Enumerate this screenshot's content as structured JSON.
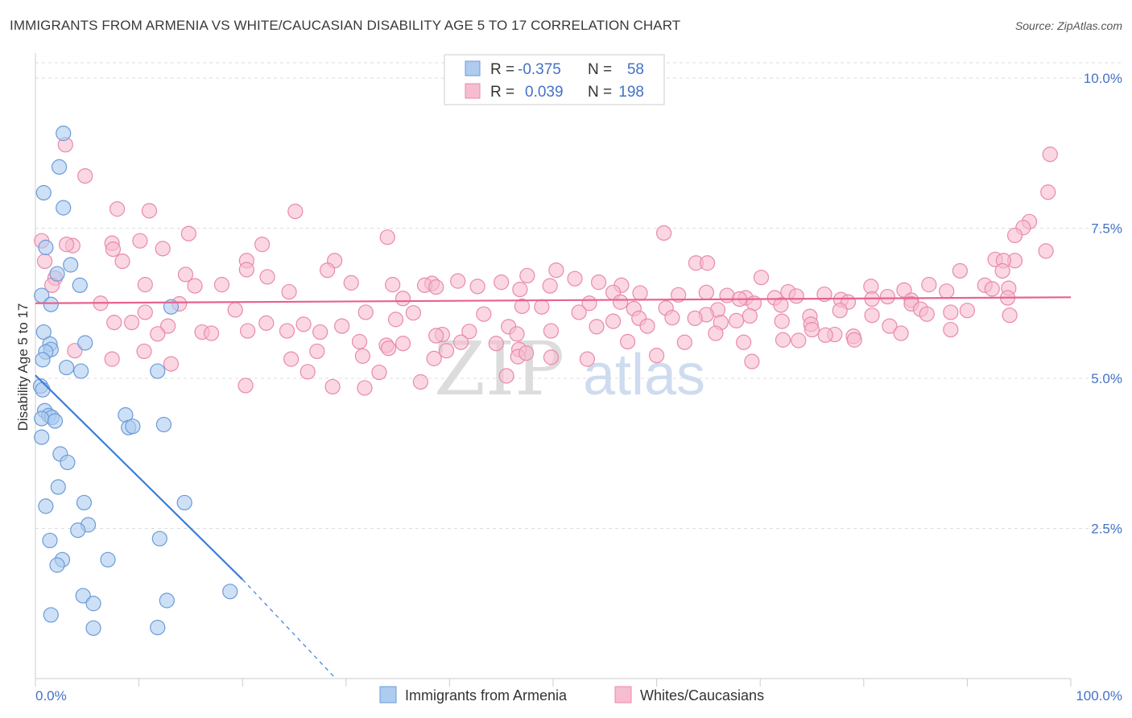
{
  "header": {
    "title": "IMMIGRANTS FROM ARMENIA VS WHITE/CAUCASIAN DISABILITY AGE 5 TO 17 CORRELATION CHART",
    "source": "Source: ZipAtlas.com"
  },
  "watermark": {
    "zip": "ZIP",
    "atlas": "atlas"
  },
  "colors": {
    "blue_fill": "#aecbf0",
    "blue_stroke": "#6b9bd8",
    "blue_line": "#3b7dd8",
    "pink_fill": "#f6bdd0",
    "pink_stroke": "#e98aa9",
    "pink_line": "#e8628e",
    "grid": "#dddddd",
    "axis_label": "#4472c4"
  },
  "legend": {
    "rows": [
      {
        "r_label": "R =",
        "r_value": "-0.375",
        "n_label": "N =",
        "n_value": "58"
      },
      {
        "r_label": "R =",
        "r_value": "0.039",
        "n_label": "N =",
        "n_value": "198"
      }
    ]
  },
  "chart_data": {
    "type": "scatter",
    "title": "IMMIGRANTS FROM ARMENIA VS WHITE/CAUCASIAN DISABILITY AGE 5 TO 17 CORRELATION CHART",
    "xlabel": "",
    "ylabel": "Disability Age 5 to 17",
    "xlim": [
      0,
      100
    ],
    "ylim": [
      0,
      10.5
    ],
    "x_tick_labels": [
      "0.0%",
      "100.0%"
    ],
    "y_ticks": [
      2.5,
      5.0,
      7.5,
      10.0
    ],
    "y_tick_labels": [
      "2.5%",
      "5.0%",
      "7.5%",
      "10.0%"
    ],
    "series": [
      {
        "name": "Immigrants from Armenia",
        "R": -0.375,
        "N": 58,
        "trend": {
          "x0": 0,
          "y0": 5.05,
          "x1": 20,
          "y1": 1.65,
          "dash_x1": 29,
          "dash_y1": 0.0
        },
        "points": [
          [
            2.7,
            9.08
          ],
          [
            2.3,
            8.52
          ],
          [
            0.8,
            8.09
          ],
          [
            2.7,
            7.84
          ],
          [
            1.0,
            7.18
          ],
          [
            3.4,
            6.89
          ],
          [
            2.1,
            6.74
          ],
          [
            4.3,
            6.55
          ],
          [
            0.6,
            6.38
          ],
          [
            1.5,
            6.23
          ],
          [
            13.1,
            6.19
          ],
          [
            0.8,
            5.77
          ],
          [
            1.4,
            5.57
          ],
          [
            4.8,
            5.59
          ],
          [
            1.5,
            5.48
          ],
          [
            1.0,
            5.44
          ],
          [
            0.7,
            5.31
          ],
          [
            3.0,
            5.18
          ],
          [
            4.4,
            5.12
          ],
          [
            11.8,
            5.12
          ],
          [
            0.5,
            4.87
          ],
          [
            0.7,
            4.81
          ],
          [
            0.9,
            4.46
          ],
          [
            1.3,
            4.38
          ],
          [
            1.6,
            4.35
          ],
          [
            0.6,
            4.33
          ],
          [
            1.9,
            4.29
          ],
          [
            8.7,
            4.39
          ],
          [
            9.0,
            4.18
          ],
          [
            9.4,
            4.2
          ],
          [
            12.4,
            4.23
          ],
          [
            0.6,
            4.02
          ],
          [
            2.4,
            3.74
          ],
          [
            3.1,
            3.6
          ],
          [
            2.2,
            3.19
          ],
          [
            4.7,
            2.93
          ],
          [
            14.4,
            2.93
          ],
          [
            1.0,
            2.87
          ],
          [
            5.1,
            2.56
          ],
          [
            4.1,
            2.47
          ],
          [
            1.4,
            2.3
          ],
          [
            12.0,
            2.33
          ],
          [
            2.6,
            1.98
          ],
          [
            7.0,
            1.98
          ],
          [
            2.1,
            1.89
          ],
          [
            18.8,
            1.45
          ],
          [
            4.6,
            1.38
          ],
          [
            12.7,
            1.3
          ],
          [
            5.6,
            1.25
          ],
          [
            1.5,
            1.06
          ],
          [
            5.6,
            0.84
          ],
          [
            11.8,
            0.85
          ]
        ]
      },
      {
        "name": "Whites/Caucasians",
        "R": 0.039,
        "N": 198,
        "trend": {
          "x0": 0,
          "y0": 6.25,
          "x1": 100,
          "y1": 6.35
        },
        "points": [
          [
            2.9,
            8.89
          ],
          [
            4.8,
            8.37
          ],
          [
            98.0,
            8.73
          ],
          [
            97.8,
            8.1
          ],
          [
            7.9,
            7.82
          ],
          [
            11.0,
            7.79
          ],
          [
            25.1,
            7.78
          ],
          [
            96.0,
            7.61
          ],
          [
            95.4,
            7.51
          ],
          [
            94.6,
            7.38
          ],
          [
            14.8,
            7.41
          ],
          [
            60.7,
            7.42
          ],
          [
            34.0,
            7.35
          ],
          [
            0.6,
            7.29
          ],
          [
            10.1,
            7.29
          ],
          [
            21.9,
            7.23
          ],
          [
            7.4,
            7.25
          ],
          [
            3.6,
            7.21
          ],
          [
            3.0,
            7.23
          ],
          [
            12.3,
            7.16
          ],
          [
            7.5,
            7.15
          ],
          [
            97.6,
            7.12
          ],
          [
            0.9,
            6.95
          ],
          [
            8.4,
            6.95
          ],
          [
            20.4,
            6.96
          ],
          [
            28.9,
            6.96
          ],
          [
            63.8,
            6.92
          ],
          [
            64.9,
            6.92
          ],
          [
            94.6,
            6.96
          ],
          [
            92.7,
            6.98
          ],
          [
            93.5,
            6.96
          ],
          [
            28.2,
            6.8
          ],
          [
            93.4,
            6.79
          ],
          [
            14.5,
            6.73
          ],
          [
            20.4,
            6.81
          ],
          [
            50.3,
            6.8
          ],
          [
            89.3,
            6.79
          ],
          [
            22.4,
            6.69
          ],
          [
            1.9,
            6.67
          ],
          [
            30.5,
            6.59
          ],
          [
            47.5,
            6.71
          ],
          [
            40.8,
            6.62
          ],
          [
            52.1,
            6.66
          ],
          [
            38.3,
            6.58
          ],
          [
            34.5,
            6.56
          ],
          [
            1.6,
            6.55
          ],
          [
            10.6,
            6.56
          ],
          [
            18.0,
            6.56
          ],
          [
            37.6,
            6.55
          ],
          [
            45.0,
            6.6
          ],
          [
            54.4,
            6.6
          ],
          [
            70.1,
            6.68
          ],
          [
            46.8,
            6.48
          ],
          [
            49.7,
            6.54
          ],
          [
            38.7,
            6.52
          ],
          [
            56.6,
            6.55
          ],
          [
            91.7,
            6.55
          ],
          [
            86.3,
            6.56
          ],
          [
            42.7,
            6.53
          ],
          [
            15.4,
            6.54
          ],
          [
            80.7,
            6.53
          ],
          [
            92.4,
            6.49
          ],
          [
            94.0,
            6.5
          ],
          [
            58.4,
            6.42
          ],
          [
            64.8,
            6.43
          ],
          [
            72.7,
            6.44
          ],
          [
            66.8,
            6.38
          ],
          [
            76.2,
            6.4
          ],
          [
            62.1,
            6.39
          ],
          [
            55.8,
            6.43
          ],
          [
            88.0,
            6.45
          ],
          [
            83.9,
            6.47
          ],
          [
            6.3,
            6.25
          ],
          [
            24.5,
            6.44
          ],
          [
            68.6,
            6.34
          ],
          [
            77.8,
            6.31
          ],
          [
            68.0,
            6.32
          ],
          [
            71.4,
            6.34
          ],
          [
            80.8,
            6.32
          ],
          [
            82.3,
            6.36
          ],
          [
            35.5,
            6.33
          ],
          [
            73.5,
            6.37
          ],
          [
            93.9,
            6.34
          ],
          [
            84.6,
            6.3
          ],
          [
            78.5,
            6.27
          ],
          [
            84.6,
            6.24
          ],
          [
            69.4,
            6.25
          ],
          [
            56.5,
            6.27
          ],
          [
            13.9,
            6.24
          ],
          [
            53.5,
            6.25
          ],
          [
            47.0,
            6.2
          ],
          [
            48.9,
            6.19
          ],
          [
            72.0,
            6.22
          ],
          [
            57.8,
            6.16
          ],
          [
            65.9,
            6.14
          ],
          [
            85.5,
            6.15
          ],
          [
            77.7,
            6.13
          ],
          [
            90.0,
            6.13
          ],
          [
            60.9,
            6.17
          ],
          [
            52.5,
            6.1
          ],
          [
            10.6,
            6.1
          ],
          [
            19.3,
            6.14
          ],
          [
            64.8,
            6.06
          ],
          [
            88.4,
            6.1
          ],
          [
            36.5,
            6.09
          ],
          [
            31.9,
            6.1
          ],
          [
            43.3,
            6.07
          ],
          [
            86.1,
            6.07
          ],
          [
            61.5,
            6.01
          ],
          [
            69.0,
            6.04
          ],
          [
            74.8,
            6.03
          ],
          [
            80.8,
            6.05
          ],
          [
            94.1,
            6.05
          ],
          [
            58.3,
            6.0
          ],
          [
            63.7,
            6.0
          ],
          [
            34.8,
            5.98
          ],
          [
            66.2,
            5.93
          ],
          [
            67.7,
            5.96
          ],
          [
            55.8,
            5.95
          ],
          [
            72.1,
            5.95
          ],
          [
            7.6,
            5.93
          ],
          [
            9.3,
            5.93
          ],
          [
            22.3,
            5.92
          ],
          [
            25.9,
            5.9
          ],
          [
            29.6,
            5.87
          ],
          [
            12.8,
            5.87
          ],
          [
            74.9,
            5.9
          ],
          [
            82.5,
            5.87
          ],
          [
            45.7,
            5.86
          ],
          [
            54.2,
            5.86
          ],
          [
            59.1,
            5.87
          ],
          [
            75.0,
            5.81
          ],
          [
            41.9,
            5.78
          ],
          [
            49.8,
            5.79
          ],
          [
            20.5,
            5.79
          ],
          [
            16.1,
            5.77
          ],
          [
            17.0,
            5.75
          ],
          [
            65.7,
            5.75
          ],
          [
            77.2,
            5.73
          ],
          [
            76.3,
            5.72
          ],
          [
            79.0,
            5.7
          ],
          [
            83.6,
            5.75
          ],
          [
            88.4,
            5.81
          ],
          [
            39.3,
            5.73
          ],
          [
            46.5,
            5.74
          ],
          [
            24.3,
            5.79
          ],
          [
            27.5,
            5.77
          ],
          [
            11.8,
            5.74
          ],
          [
            38.7,
            5.71
          ],
          [
            79.1,
            5.64
          ],
          [
            73.7,
            5.63
          ],
          [
            72.2,
            5.64
          ],
          [
            33.9,
            5.55
          ],
          [
            35.5,
            5.58
          ],
          [
            57.2,
            5.61
          ],
          [
            62.7,
            5.6
          ],
          [
            68.4,
            5.6
          ],
          [
            31.3,
            5.61
          ],
          [
            41.1,
            5.6
          ],
          [
            44.5,
            5.58
          ],
          [
            46.7,
            5.48
          ],
          [
            27.2,
            5.45
          ],
          [
            31.6,
            5.37
          ],
          [
            46.6,
            5.36
          ],
          [
            47.4,
            5.42
          ],
          [
            34.1,
            5.5
          ],
          [
            39.7,
            5.46
          ],
          [
            3.8,
            5.46
          ],
          [
            13.1,
            5.24
          ],
          [
            7.4,
            5.32
          ],
          [
            24.7,
            5.32
          ],
          [
            10.5,
            5.45
          ],
          [
            33.2,
            5.1
          ],
          [
            26.3,
            5.11
          ],
          [
            20.3,
            4.88
          ],
          [
            37.2,
            4.94
          ],
          [
            31.8,
            4.84
          ],
          [
            28.7,
            4.86
          ],
          [
            38.5,
            5.33
          ],
          [
            49.8,
            5.35
          ],
          [
            53.3,
            5.32
          ],
          [
            60.0,
            5.38
          ],
          [
            69.2,
            5.28
          ],
          [
            45.5,
            5.04
          ]
        ]
      }
    ]
  },
  "bottom_legend": {
    "items": [
      {
        "label": "Immigrants from Armenia"
      },
      {
        "label": "Whites/Caucasians"
      }
    ]
  }
}
